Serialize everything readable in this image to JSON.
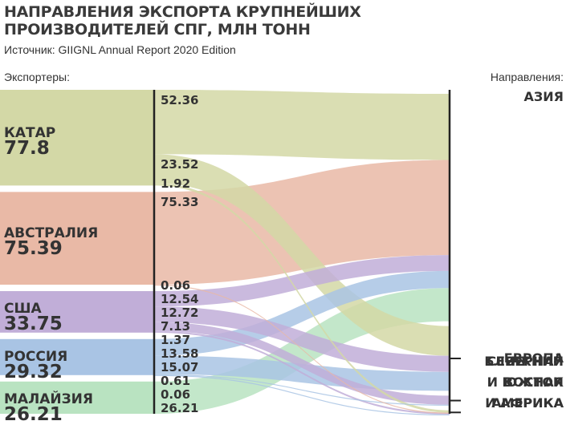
{
  "header": {
    "title_line1": "НАПРАВЛЕНИЯ ЭКСПОРТА КРУПНЕЙШИХ",
    "title_line2": "ПРОИЗВОДИТЕЛЕЙ СПГ, МЛН ТОНН",
    "source": "Источник: GIIGNL Annual Report 2020 Edition"
  },
  "labels": {
    "exporters": "Экспортеры:",
    "directions": "Направления:"
  },
  "exporters": [
    {
      "name": "КАТАР",
      "total": "77.8",
      "color": "#d3d8a6"
    },
    {
      "name": "АВСТРАЛИЯ",
      "total": "75.39",
      "color": "#e9b9a6"
    },
    {
      "name": "США",
      "total": "33.75",
      "color": "#c1aed8"
    },
    {
      "name": "РОССИЯ",
      "total": "29.32",
      "color": "#a9c4e4"
    },
    {
      "name": "МАЛАЙЗИЯ",
      "total": "26.21",
      "color": "#b9e3c1"
    }
  ],
  "destinations": [
    {
      "name": "АЗИЯ"
    },
    {
      "name": "ЕВРОПА"
    },
    {
      "name": "СЕВЕРНАЯ\nИ ЮЖНАЯ\nАМЕРИКА"
    },
    {
      "name": "БЛИЖНИЙ\nВОСТОК\nИ АФРИКА"
    }
  ],
  "flows": [
    {
      "from": "КАТАР",
      "to": "АЗИЯ",
      "value": 52.36,
      "label": "52.36"
    },
    {
      "from": "КАТАР",
      "to": "ЕВРОПА",
      "value": 23.52,
      "label": "23.52"
    },
    {
      "from": "КАТАР",
      "to": "БЛИЖНИЙ ВОСТОК И АФРИКА",
      "value": 1.92,
      "label": "1.92"
    },
    {
      "from": "АВСТРАЛИЯ",
      "to": "АЗИЯ",
      "value": 75.33,
      "label": "75.33"
    },
    {
      "from": "АВСТРАЛИЯ",
      "to": "БЛИЖНИЙ ВОСТОК И АФРИКА",
      "value": 0.06,
      "label": "0.06"
    },
    {
      "from": "США",
      "to": "АЗИЯ",
      "value": 12.54,
      "label": "12.54"
    },
    {
      "from": "США",
      "to": "ЕВРОПА",
      "value": 12.72,
      "label": "12.72"
    },
    {
      "from": "США",
      "to": "СЕВЕРНАЯ И ЮЖНАЯ АМЕРИКА",
      "value": 7.13,
      "label": "7.13"
    },
    {
      "from": "США",
      "to": "БЛИЖНИЙ ВОСТОК И АФРИКА",
      "value": 1.37,
      "label": "1.37"
    },
    {
      "from": "РОССИЯ",
      "to": "АЗИЯ",
      "value": 13.58,
      "label": "13.58"
    },
    {
      "from": "РОССИЯ",
      "to": "ЕВРОПА",
      "value": 15.07,
      "label": "15.07"
    },
    {
      "from": "РОССИЯ",
      "to": "СЕВЕРНАЯ И ЮЖНАЯ АМЕРИКА",
      "value": 0.61,
      "label": "0.61"
    },
    {
      "from": "РОССИЯ",
      "to": "БЛИЖНИЙ ВОСТОК И АФРИКА",
      "value": 0.06,
      "label": "0.06"
    },
    {
      "from": "МАЛАЙЗИЯ",
      "to": "АЗИЯ",
      "value": 26.21,
      "label": "26.21"
    }
  ]
}
